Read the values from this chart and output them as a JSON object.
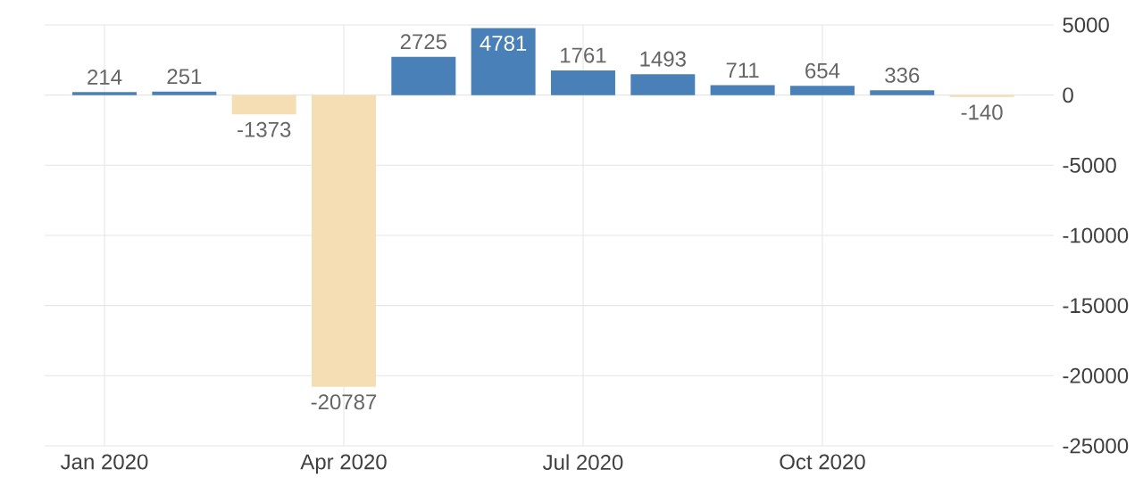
{
  "chart_data": {
    "type": "bar",
    "categories": [
      "Jan 2020",
      null,
      null,
      "Apr 2020",
      null,
      null,
      "Jul 2020",
      null,
      null,
      "Oct 2020",
      null,
      null
    ],
    "values": [
      214,
      251,
      -1373,
      -20787,
      2725,
      4781,
      1761,
      1493,
      711,
      654,
      336,
      -140
    ],
    "colors": [
      "#4a80b8",
      "#4a80b8",
      "#f5deb3",
      "#f5deb3",
      "#4a80b8",
      "#4a80b8",
      "#4a80b8",
      "#4a80b8",
      "#4a80b8",
      "#4a80b8",
      "#4a80b8",
      "#f5deb3"
    ],
    "ylim": [
      -25000,
      5000
    ],
    "yticks": [
      5000,
      0,
      -5000,
      -10000,
      -15000,
      -20000,
      -25000
    ],
    "grid": true,
    "data_labels": true
  }
}
